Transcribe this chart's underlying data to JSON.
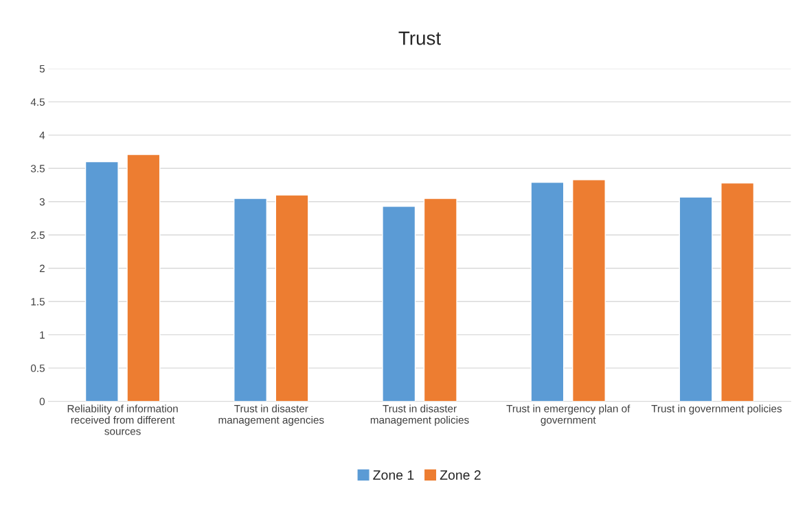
{
  "chart_data": {
    "type": "bar",
    "title": "Trust",
    "categories": [
      "Reliability of information\nreceived from different\nsources",
      "Trust in disaster\nmanagement agencies",
      "Trust in disaster\nmanagement policies",
      "Trust in emergency plan of\ngovernment",
      "Trust in government policies"
    ],
    "series": [
      {
        "name": "Zone 1",
        "color": "#5b9bd5",
        "values": [
          3.6,
          3.05,
          2.93,
          3.29,
          3.07
        ]
      },
      {
        "name": "Zone 2",
        "color": "#ed7d31",
        "values": [
          3.71,
          3.1,
          3.05,
          3.33,
          3.28
        ]
      }
    ],
    "ylim": [
      0,
      5
    ],
    "yticks": [
      0,
      0.5,
      1,
      1.5,
      2,
      2.5,
      3,
      3.5,
      4,
      4.5,
      5
    ],
    "grid": "y",
    "legend": "bottom"
  }
}
